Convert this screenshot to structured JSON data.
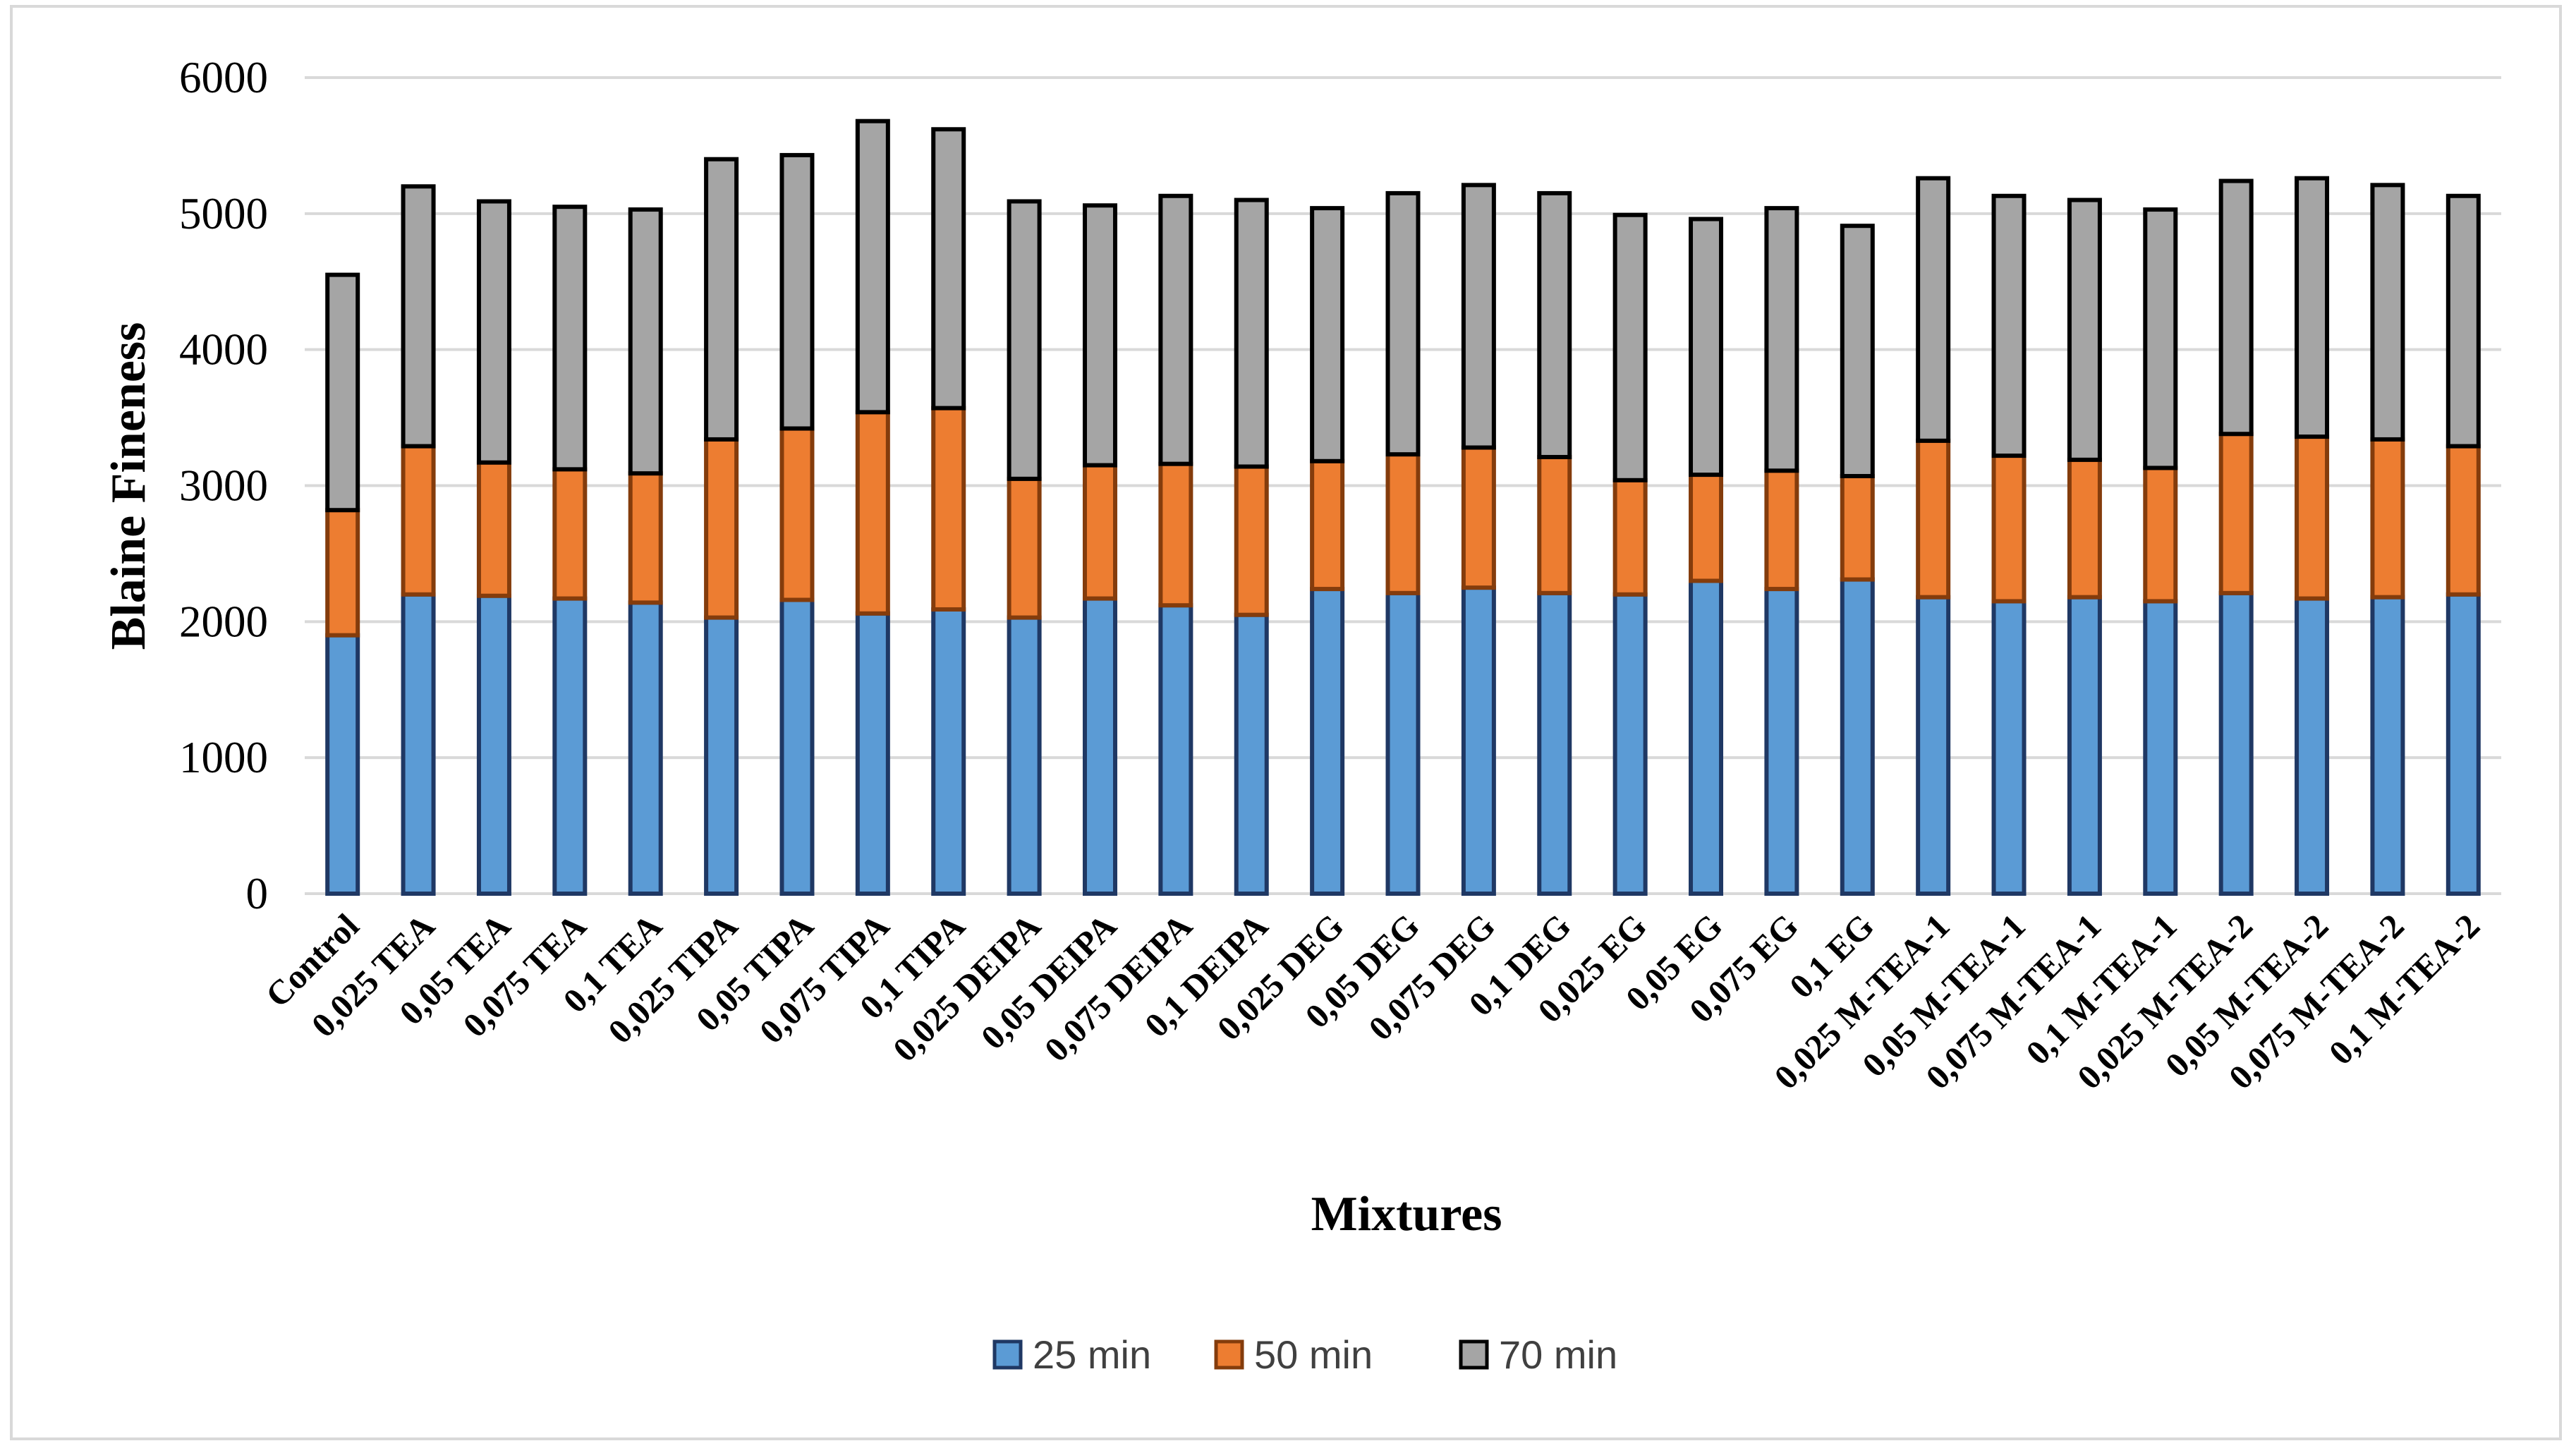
{
  "chart_data": {
    "type": "bar",
    "stacked": true,
    "title": "",
    "xlabel": "Mixtures",
    "ylabel": "Blaine Fineness",
    "ylim": [
      0,
      6000
    ],
    "yticks": [
      0,
      1000,
      2000,
      3000,
      4000,
      5000,
      6000
    ],
    "grid": true,
    "legend_position": "bottom",
    "categories": [
      "Control",
      "0,025 TEA",
      "0,05 TEA",
      "0,075 TEA",
      "0,1 TEA",
      "0,025 TIPA",
      "0,05 TIPA",
      "0,075 TIPA",
      "0,1 TIPA",
      "0,025 DEIPA",
      "0,05 DEIPA",
      "0,075 DEIPA",
      "0,1 DEIPA",
      "0,025 DEG",
      "0,05 DEG",
      "0,075 DEG",
      "0,1 DEG",
      "0,025 EG",
      "0,05 EG",
      "0,075 EG",
      "0,1 EG",
      "0,025 M-TEA-1",
      "0,05 M-TEA-1",
      "0,075 M-TEA-1",
      "0,1 M-TEA-1",
      "0,025 M-TEA-2",
      "0,05 M-TEA-2",
      "0,075 M-TEA-2",
      "0,1 M-TEA-2"
    ],
    "series": [
      {
        "name": "25 min",
        "color": "#5b9bd5",
        "edge": "#1f3864",
        "values": [
          1900,
          2200,
          2190,
          2170,
          2140,
          2030,
          2160,
          2060,
          2090,
          2030,
          2170,
          2120,
          2050,
          2240,
          2210,
          2250,
          2210,
          2200,
          2300,
          2240,
          2310,
          2180,
          2150,
          2180,
          2150,
          2210,
          2170,
          2180,
          2200
        ]
      },
      {
        "name": "50 min",
        "color": "#ed7d31",
        "edge": "#843c0c",
        "values": [
          920,
          1090,
          980,
          950,
          950,
          1310,
          1260,
          1480,
          1480,
          1020,
          980,
          1040,
          1090,
          940,
          1020,
          1030,
          1000,
          840,
          780,
          870,
          760,
          1150,
          1070,
          1010,
          980,
          1170,
          1190,
          1160,
          1090
        ]
      },
      {
        "name": "70 min",
        "color": "#a5a5a5",
        "edge": "#000000",
        "values": [
          1730,
          1910,
          1920,
          1930,
          1940,
          2060,
          2010,
          2140,
          2050,
          2040,
          1910,
          1970,
          1960,
          1860,
          1920,
          1930,
          1940,
          1950,
          1880,
          1930,
          1840,
          1930,
          1910,
          1910,
          1900,
          1860,
          1900,
          1870,
          1840
        ]
      }
    ]
  }
}
